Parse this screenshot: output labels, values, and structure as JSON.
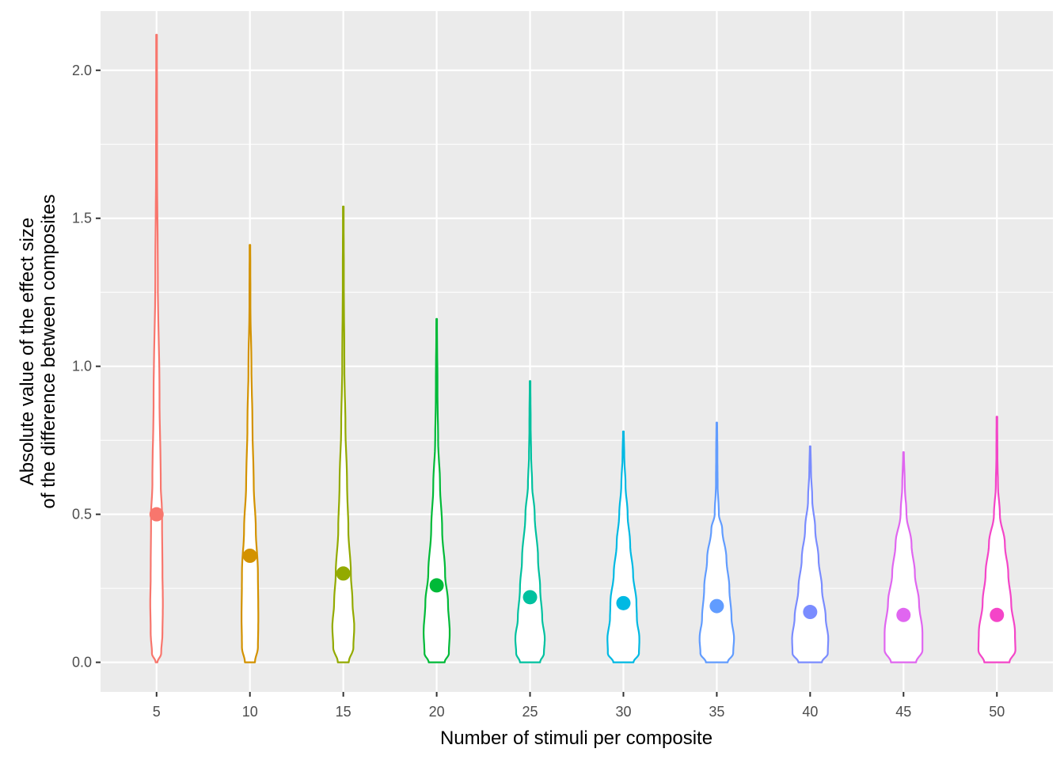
{
  "chart_data": {
    "type": "violin",
    "xlabel": "Number of stimuli per composite",
    "ylabel_lines": [
      "Absolute value of the effect size",
      "of the difference between composites"
    ],
    "ylim": [
      -0.1,
      2.2
    ],
    "yticks": [
      0.0,
      0.5,
      1.0,
      1.5,
      2.0
    ],
    "ytick_labels": [
      "0.0",
      "0.5",
      "1.0",
      "1.5",
      "2.0"
    ],
    "categories": [
      "5",
      "10",
      "15",
      "20",
      "25",
      "30",
      "35",
      "40",
      "45",
      "50"
    ],
    "grid": true,
    "legend": "none",
    "series": [
      {
        "category": "5",
        "color": "#F8766D",
        "mean": 0.5,
        "min": 0.0,
        "max": 2.12,
        "profile": [
          [
            0.0,
            0.022
          ],
          [
            0.03,
            0.11
          ],
          [
            0.1,
            0.14
          ],
          [
            0.2,
            0.15
          ],
          [
            0.3,
            0.14
          ],
          [
            0.5,
            0.13
          ],
          [
            0.6,
            0.1
          ],
          [
            0.9,
            0.07
          ],
          [
            1.3,
            0.03
          ],
          [
            1.7,
            0.012
          ],
          [
            2.12,
            0.008
          ]
        ]
      },
      {
        "category": "10",
        "color": "#D39200",
        "mean": 0.36,
        "min": 0.0,
        "max": 1.41,
        "profile": [
          [
            0.0,
            0.12
          ],
          [
            0.05,
            0.19
          ],
          [
            0.15,
            0.2
          ],
          [
            0.3,
            0.19
          ],
          [
            0.45,
            0.14
          ],
          [
            0.6,
            0.09
          ],
          [
            0.8,
            0.06
          ],
          [
            1.0,
            0.035
          ],
          [
            1.2,
            0.012
          ],
          [
            1.41,
            0.008
          ]
        ]
      },
      {
        "category": "15",
        "color": "#93AA00",
        "mean": 0.3,
        "min": 0.0,
        "max": 1.54,
        "profile": [
          [
            0.0,
            0.13
          ],
          [
            0.05,
            0.24
          ],
          [
            0.12,
            0.26
          ],
          [
            0.2,
            0.22
          ],
          [
            0.3,
            0.18
          ],
          [
            0.45,
            0.12
          ],
          [
            0.6,
            0.09
          ],
          [
            0.8,
            0.05
          ],
          [
            1.0,
            0.025
          ],
          [
            1.3,
            0.012
          ],
          [
            1.54,
            0.008
          ]
        ]
      },
      {
        "category": "20",
        "color": "#00BA38",
        "mean": 0.26,
        "min": 0.0,
        "max": 1.16,
        "profile": [
          [
            0.0,
            0.19
          ],
          [
            0.03,
            0.29
          ],
          [
            0.1,
            0.31
          ],
          [
            0.2,
            0.27
          ],
          [
            0.3,
            0.2
          ],
          [
            0.45,
            0.13
          ],
          [
            0.6,
            0.08
          ],
          [
            0.75,
            0.035
          ],
          [
            0.9,
            0.02
          ],
          [
            1.16,
            0.008
          ]
        ]
      },
      {
        "category": "25",
        "color": "#00C19F",
        "mean": 0.22,
        "min": 0.0,
        "max": 0.95,
        "profile": [
          [
            0.0,
            0.24
          ],
          [
            0.03,
            0.33
          ],
          [
            0.08,
            0.35
          ],
          [
            0.15,
            0.29
          ],
          [
            0.25,
            0.24
          ],
          [
            0.35,
            0.19
          ],
          [
            0.5,
            0.11
          ],
          [
            0.6,
            0.05
          ],
          [
            0.7,
            0.025
          ],
          [
            0.8,
            0.015
          ],
          [
            0.95,
            0.008
          ]
        ]
      },
      {
        "category": "30",
        "color": "#00B9E3",
        "mean": 0.2,
        "min": 0.0,
        "max": 0.78,
        "profile": [
          [
            0.0,
            0.24
          ],
          [
            0.03,
            0.37
          ],
          [
            0.08,
            0.38
          ],
          [
            0.15,
            0.32
          ],
          [
            0.2,
            0.31
          ],
          [
            0.3,
            0.23
          ],
          [
            0.4,
            0.16
          ],
          [
            0.5,
            0.1
          ],
          [
            0.6,
            0.05
          ],
          [
            0.7,
            0.02
          ],
          [
            0.78,
            0.008
          ]
        ]
      },
      {
        "category": "35",
        "color": "#619CFF",
        "mean": 0.19,
        "min": 0.0,
        "max": 0.81,
        "profile": [
          [
            0.0,
            0.26
          ],
          [
            0.03,
            0.39
          ],
          [
            0.08,
            0.41
          ],
          [
            0.15,
            0.35
          ],
          [
            0.25,
            0.3
          ],
          [
            0.35,
            0.23
          ],
          [
            0.45,
            0.13
          ],
          [
            0.5,
            0.05
          ],
          [
            0.6,
            0.02
          ],
          [
            0.7,
            0.015
          ],
          [
            0.81,
            0.008
          ]
        ]
      },
      {
        "category": "40",
        "color": "#7A8CFF",
        "mean": 0.17,
        "min": 0.0,
        "max": 0.73,
        "profile": [
          [
            0.0,
            0.28
          ],
          [
            0.03,
            0.42
          ],
          [
            0.08,
            0.43
          ],
          [
            0.15,
            0.37
          ],
          [
            0.25,
            0.28
          ],
          [
            0.35,
            0.2
          ],
          [
            0.45,
            0.12
          ],
          [
            0.55,
            0.05
          ],
          [
            0.65,
            0.02
          ],
          [
            0.73,
            0.008
          ]
        ]
      },
      {
        "category": "45",
        "color": "#E066F0",
        "mean": 0.16,
        "min": 0.0,
        "max": 0.71,
        "profile": [
          [
            0.0,
            0.3
          ],
          [
            0.04,
            0.45
          ],
          [
            0.1,
            0.45
          ],
          [
            0.2,
            0.37
          ],
          [
            0.3,
            0.27
          ],
          [
            0.4,
            0.19
          ],
          [
            0.5,
            0.07
          ],
          [
            0.6,
            0.03
          ],
          [
            0.71,
            0.008
          ]
        ]
      },
      {
        "category": "50",
        "color": "#F445C8",
        "mean": 0.16,
        "min": 0.0,
        "max": 0.83,
        "profile": [
          [
            0.0,
            0.3
          ],
          [
            0.04,
            0.44
          ],
          [
            0.1,
            0.43
          ],
          [
            0.2,
            0.34
          ],
          [
            0.3,
            0.27
          ],
          [
            0.4,
            0.19
          ],
          [
            0.5,
            0.07
          ],
          [
            0.6,
            0.025
          ],
          [
            0.7,
            0.012
          ],
          [
            0.83,
            0.008
          ]
        ]
      }
    ]
  }
}
